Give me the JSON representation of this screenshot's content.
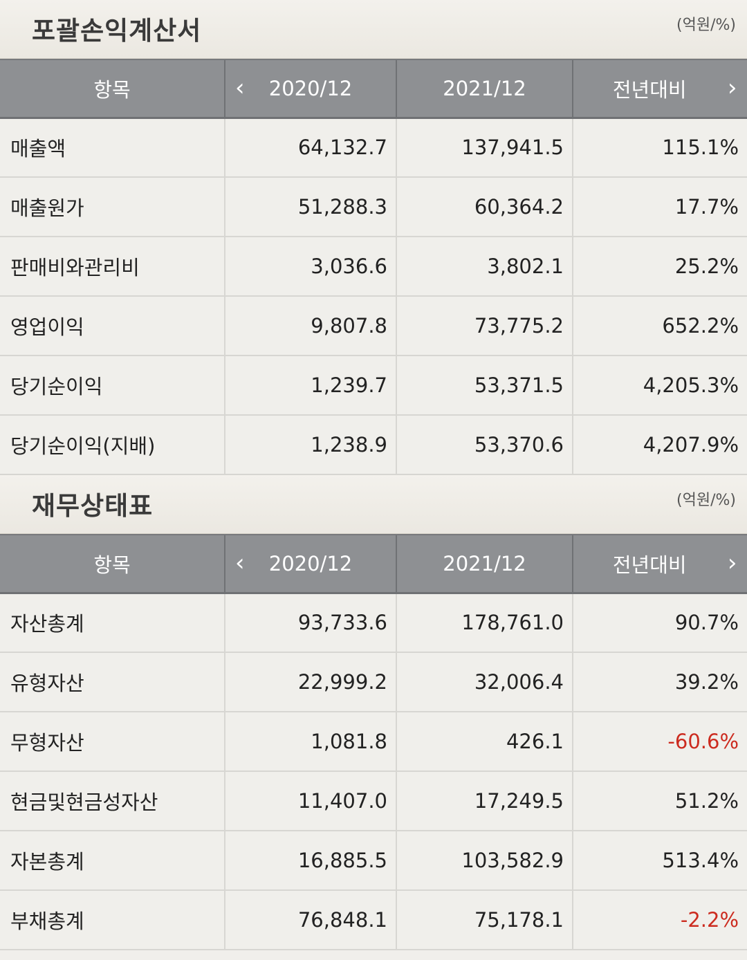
{
  "sections": [
    {
      "title": "포괄손익계산서",
      "unit": "(억원/%)",
      "columns": [
        "항목",
        "2020/12",
        "2021/12",
        "전년대비"
      ],
      "rows": [
        {
          "label": "매출액",
          "y2020": "64,132.7",
          "y2021": "137,941.5",
          "yoy": "115.1%"
        },
        {
          "label": "매출원가",
          "y2020": "51,288.3",
          "y2021": "60,364.2",
          "yoy": "17.7%"
        },
        {
          "label": "판매비와관리비",
          "y2020": "3,036.6",
          "y2021": "3,802.1",
          "yoy": "25.2%"
        },
        {
          "label": "영업이익",
          "y2020": "9,807.8",
          "y2021": "73,775.2",
          "yoy": "652.2%"
        },
        {
          "label": "당기순이익",
          "y2020": "1,239.7",
          "y2021": "53,371.5",
          "yoy": "4,205.3%"
        },
        {
          "label": "당기순이익(지배)",
          "y2020": "1,238.9",
          "y2021": "53,370.6",
          "yoy": "4,207.9%"
        }
      ]
    },
    {
      "title": "재무상태표",
      "unit": "(억원/%)",
      "columns": [
        "항목",
        "2020/12",
        "2021/12",
        "전년대비"
      ],
      "rows": [
        {
          "label": "자산총계",
          "y2020": "93,733.6",
          "y2021": "178,761.0",
          "yoy": "90.7%"
        },
        {
          "label": "유형자산",
          "y2020": "22,999.2",
          "y2021": "32,006.4",
          "yoy": "39.2%"
        },
        {
          "label": "무형자산",
          "y2020": "1,081.8",
          "y2021": "426.1",
          "yoy": "-60.6%"
        },
        {
          "label": "현금및현금성자산",
          "y2020": "11,407.0",
          "y2021": "17,249.5",
          "yoy": "51.2%"
        },
        {
          "label": "자본총계",
          "y2020": "16,885.5",
          "y2021": "103,582.9",
          "yoy": "513.4%"
        },
        {
          "label": "부채총계",
          "y2020": "76,848.1",
          "y2021": "75,178.1",
          "yoy": "-2.2%"
        }
      ]
    }
  ],
  "icons": {
    "prev": "chevron-left-icon",
    "next": "chevron-right-icon"
  },
  "colors": {
    "header_bg": "#8e9093",
    "negative": "#cc2b1f",
    "row_bg": "#f0efeb"
  }
}
